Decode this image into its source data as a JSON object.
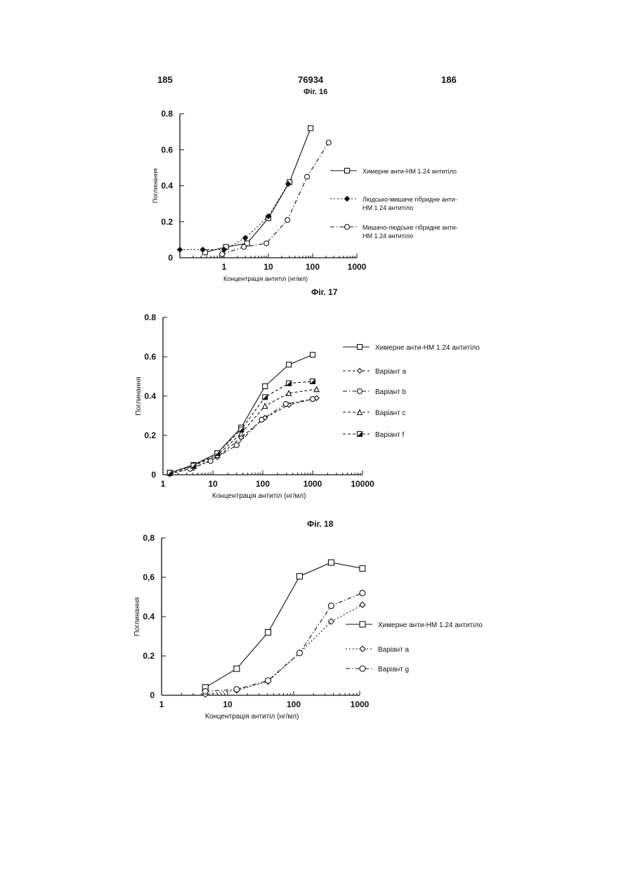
{
  "header": {
    "page_left": "185",
    "page_center": "76934",
    "page_right": "186"
  },
  "chart_data": [
    {
      "id": "f16",
      "type": "line",
      "title": "Фіг. 16",
      "xlabel": "Концентрація антитіл (нг/мл)",
      "ylabel": "Поглинання",
      "xscale": "log",
      "xlim": [
        0.1,
        1000
      ],
      "ylim": [
        0,
        0.8
      ],
      "xticks": [
        1,
        10,
        100,
        1000
      ],
      "yticks": [
        0,
        0.2,
        0.4,
        0.6,
        0.8
      ],
      "ytick_labels": [
        "0",
        "0.2",
        "0.4",
        "0.6",
        "0.8"
      ],
      "legend_position": "right",
      "series": [
        {
          "name": "Химерне анти-НМ 1.24 антитіло",
          "marker": "square",
          "line": "solid",
          "x": [
            0.37,
            1.1,
            3.3,
            10,
            30,
            90
          ],
          "y": [
            0.03,
            0.06,
            0.08,
            0.22,
            0.42,
            0.72
          ]
        },
        {
          "name": "Людсько-мишаче гібридне анти-НМ 1.24 антитіло",
          "marker": "filled-diamond",
          "line": "dotted",
          "x": [
            0.1,
            0.33,
            1,
            3,
            10,
            28
          ],
          "y": [
            0.045,
            0.045,
            0.045,
            0.11,
            0.23,
            0.41
          ]
        },
        {
          "name": "Мишачо-людське гібридне анти-НМ 1.24 антитіло",
          "marker": "circle",
          "line": "dashdot",
          "x": [
            0.9,
            2.8,
            9,
            27,
            75,
            230
          ],
          "y": [
            0.02,
            0.06,
            0.08,
            0.21,
            0.45,
            0.64
          ]
        }
      ]
    },
    {
      "id": "f17",
      "type": "line",
      "title": "Фіг. 17",
      "xlabel": "Концентрація антитіл (нг/мл)",
      "ylabel": "Поглинання",
      "xscale": "log",
      "xlim": [
        1,
        10000
      ],
      "ylim": [
        0,
        0.8
      ],
      "xticks": [
        1,
        10,
        100,
        1000,
        10000
      ],
      "yticks": [
        0,
        0.2,
        0.4,
        0.6,
        0.8
      ],
      "ytick_labels": [
        "0",
        "0.2",
        "0.4",
        "0.6",
        "0.8"
      ],
      "legend_position": "right",
      "series": [
        {
          "name": "Химерне анти-НМ 1.24 антитіло",
          "marker": "square",
          "line": "solid",
          "x": [
            1.37,
            4.1,
            12.3,
            37,
            111,
            333,
            1000
          ],
          "y": [
            0.01,
            0.05,
            0.11,
            0.24,
            0.45,
            0.56,
            0.61
          ]
        },
        {
          "name": "Варіант а",
          "marker": "diamond",
          "line": "dashed",
          "x": [
            1.37,
            4.1,
            12.3,
            37,
            111,
            333,
            1200
          ],
          "y": [
            0.005,
            0.035,
            0.09,
            0.19,
            0.29,
            0.355,
            0.39
          ]
        },
        {
          "name": "Варіант b",
          "marker": "circle",
          "line": "dashdot",
          "x": [
            1.37,
            3.5,
            9,
            30,
            95,
            290,
            1000
          ],
          "y": [
            0.005,
            0.03,
            0.07,
            0.15,
            0.28,
            0.36,
            0.385
          ]
        },
        {
          "name": "Варіант c",
          "marker": "triangle",
          "line": "dashed",
          "x": [
            1.37,
            4.1,
            12.3,
            37,
            111,
            333,
            1200
          ],
          "y": [
            0.01,
            0.045,
            0.1,
            0.21,
            0.35,
            0.415,
            0.435
          ]
        },
        {
          "name": "Варіант f",
          "marker": "half-square",
          "line": "dashed",
          "x": [
            1.37,
            4.1,
            12.3,
            37,
            111,
            333,
            1000
          ],
          "y": [
            0.01,
            0.045,
            0.11,
            0.23,
            0.395,
            0.465,
            0.475
          ]
        }
      ]
    },
    {
      "id": "f18",
      "type": "line",
      "title": "Фіг. 18",
      "xlabel": "Концентрація антитіл (нг/мл)",
      "ylabel": "Поглинання",
      "xscale": "log",
      "xlim": [
        1,
        1000
      ],
      "ylim": [
        0,
        0.8
      ],
      "xticks": [
        1,
        10,
        100,
        1000
      ],
      "yticks": [
        0,
        0.2,
        0.4,
        0.6,
        0.8
      ],
      "ytick_labels": [
        "0",
        "0.2",
        "0.4",
        "0,6",
        "0,8"
      ],
      "legend_position": "right",
      "series": [
        {
          "name": "Химерне анти-НМ 1.24 антитіло",
          "marker": "square",
          "line": "solid",
          "x": [
            4.6,
            13.7,
            41,
            123,
            370,
            1100
          ],
          "y": [
            0.04,
            0.135,
            0.32,
            0.605,
            0.675,
            0.645
          ]
        },
        {
          "name": "Варіант а",
          "marker": "diamond",
          "line": "dotted",
          "x": [
            4.6,
            13.7,
            41,
            123,
            370,
            1100
          ],
          "y": [
            0.005,
            0.025,
            0.07,
            0.215,
            0.375,
            0.46
          ]
        },
        {
          "name": "Варіант g",
          "marker": "circle",
          "line": "dashdot",
          "x": [
            4.6,
            13.7,
            41,
            123,
            370,
            1100
          ],
          "y": [
            0.02,
            0.03,
            0.075,
            0.215,
            0.455,
            0.52
          ]
        }
      ]
    }
  ]
}
